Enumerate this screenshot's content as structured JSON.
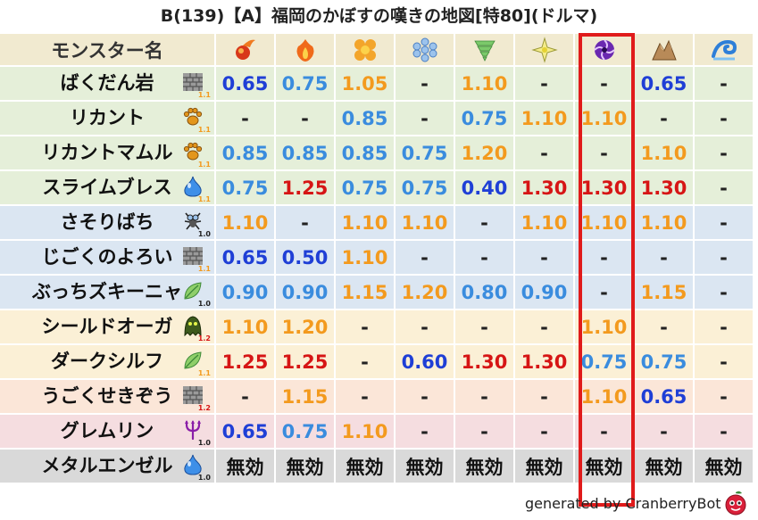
{
  "title": "B(139)【A】福岡のかぼすの嘆きの地図[特80](ドルマ)",
  "header": {
    "name_label": "モンスター名",
    "elements": [
      {
        "icon": "mera-fire-icon",
        "color": "#e8401c"
      },
      {
        "icon": "gira-flame-icon",
        "color": "#f06a1a"
      },
      {
        "icon": "io-explosion-icon",
        "color": "#f3a52a"
      },
      {
        "icon": "hyado-ice-icon",
        "color": "#7aa8e0"
      },
      {
        "icon": "bagi-wind-icon",
        "color": "#7bc96a"
      },
      {
        "icon": "dein-light-icon",
        "color": "#d9c84a"
      },
      {
        "icon": "doruma-dark-icon",
        "color": "#7a2fb8"
      },
      {
        "icon": "jibari-earth-icon",
        "color": "#a87a48"
      },
      {
        "icon": "water-wave-icon",
        "color": "#2e7fd8"
      }
    ]
  },
  "rows": [
    {
      "name": "ばくだん岩",
      "bg": "green",
      "type_icon": "stone-block-icon",
      "type_num": "1.1",
      "type_num_color": "#f39a1e",
      "cells": [
        {
          "v": "0.65",
          "c": "blue"
        },
        {
          "v": "0.75",
          "c": "sky"
        },
        {
          "v": "1.05",
          "c": "orange"
        },
        {
          "v": "-",
          "c": "dash"
        },
        {
          "v": "1.10",
          "c": "orange"
        },
        {
          "v": "-",
          "c": "dash"
        },
        {
          "v": "-",
          "c": "dash"
        },
        {
          "v": "0.65",
          "c": "blue"
        },
        {
          "v": "-",
          "c": "dash"
        }
      ]
    },
    {
      "name": "リカント",
      "bg": "green",
      "type_icon": "paw-icon",
      "type_num": "1.1",
      "type_num_color": "#f39a1e",
      "cells": [
        {
          "v": "-",
          "c": "dash"
        },
        {
          "v": "-",
          "c": "dash"
        },
        {
          "v": "0.85",
          "c": "sky"
        },
        {
          "v": "-",
          "c": "dash"
        },
        {
          "v": "0.75",
          "c": "sky"
        },
        {
          "v": "1.10",
          "c": "orange"
        },
        {
          "v": "1.10",
          "c": "orange"
        },
        {
          "v": "-",
          "c": "dash"
        },
        {
          "v": "-",
          "c": "dash"
        }
      ]
    },
    {
      "name": "リカントマムル",
      "bg": "green",
      "type_icon": "paw-icon",
      "type_num": "1.1",
      "type_num_color": "#f39a1e",
      "cells": [
        {
          "v": "0.85",
          "c": "sky"
        },
        {
          "v": "0.85",
          "c": "sky"
        },
        {
          "v": "0.85",
          "c": "sky"
        },
        {
          "v": "0.75",
          "c": "sky"
        },
        {
          "v": "1.20",
          "c": "orange"
        },
        {
          "v": "-",
          "c": "dash"
        },
        {
          "v": "-",
          "c": "dash"
        },
        {
          "v": "1.10",
          "c": "orange"
        },
        {
          "v": "-",
          "c": "dash"
        }
      ]
    },
    {
      "name": "スライムブレス",
      "bg": "green",
      "type_icon": "slime-icon",
      "type_num": "1.1",
      "type_num_color": "#f39a1e",
      "cells": [
        {
          "v": "0.75",
          "c": "sky"
        },
        {
          "v": "1.25",
          "c": "red"
        },
        {
          "v": "0.75",
          "c": "sky"
        },
        {
          "v": "0.75",
          "c": "sky"
        },
        {
          "v": "0.40",
          "c": "blue"
        },
        {
          "v": "1.30",
          "c": "red"
        },
        {
          "v": "1.30",
          "c": "red"
        },
        {
          "v": "1.30",
          "c": "red"
        },
        {
          "v": "-",
          "c": "dash"
        }
      ]
    },
    {
      "name": "さそりばち",
      "bg": "blue",
      "type_icon": "insect-icon",
      "type_num": "1.0",
      "type_num_color": "#222222",
      "cells": [
        {
          "v": "1.10",
          "c": "orange"
        },
        {
          "v": "-",
          "c": "dash"
        },
        {
          "v": "1.10",
          "c": "orange"
        },
        {
          "v": "1.10",
          "c": "orange"
        },
        {
          "v": "-",
          "c": "dash"
        },
        {
          "v": "1.10",
          "c": "orange"
        },
        {
          "v": "1.10",
          "c": "orange"
        },
        {
          "v": "1.10",
          "c": "orange"
        },
        {
          "v": "-",
          "c": "dash"
        }
      ]
    },
    {
      "name": "じごくのよろい",
      "bg": "blue",
      "type_icon": "stone-block-icon",
      "type_num": "1.1",
      "type_num_color": "#f39a1e",
      "cells": [
        {
          "v": "0.65",
          "c": "blue"
        },
        {
          "v": "0.50",
          "c": "blue"
        },
        {
          "v": "1.10",
          "c": "orange"
        },
        {
          "v": "-",
          "c": "dash"
        },
        {
          "v": "-",
          "c": "dash"
        },
        {
          "v": "-",
          "c": "dash"
        },
        {
          "v": "-",
          "c": "dash"
        },
        {
          "v": "-",
          "c": "dash"
        },
        {
          "v": "-",
          "c": "dash"
        }
      ]
    },
    {
      "name": "ぶっちズキーニャ",
      "bg": "blue",
      "type_icon": "leaf-icon",
      "type_num": "1.0",
      "type_num_color": "#222222",
      "cells": [
        {
          "v": "0.90",
          "c": "sky"
        },
        {
          "v": "0.90",
          "c": "sky"
        },
        {
          "v": "1.15",
          "c": "orange"
        },
        {
          "v": "1.20",
          "c": "orange"
        },
        {
          "v": "0.80",
          "c": "sky"
        },
        {
          "v": "0.90",
          "c": "sky"
        },
        {
          "v": "-",
          "c": "dash"
        },
        {
          "v": "1.15",
          "c": "orange"
        },
        {
          "v": "-",
          "c": "dash"
        }
      ]
    },
    {
      "name": "シールドオーガ",
      "bg": "yellow",
      "type_icon": "zombie-ghost-icon",
      "type_num": "1.2",
      "type_num_color": "#d61515",
      "cells": [
        {
          "v": "1.10",
          "c": "orange"
        },
        {
          "v": "1.20",
          "c": "orange"
        },
        {
          "v": "-",
          "c": "dash"
        },
        {
          "v": "-",
          "c": "dash"
        },
        {
          "v": "-",
          "c": "dash"
        },
        {
          "v": "-",
          "c": "dash"
        },
        {
          "v": "1.10",
          "c": "orange"
        },
        {
          "v": "-",
          "c": "dash"
        },
        {
          "v": "-",
          "c": "dash"
        }
      ]
    },
    {
      "name": "ダークシルフ",
      "bg": "yellow",
      "type_icon": "leaf-icon",
      "type_num": "1.1",
      "type_num_color": "#f39a1e",
      "cells": [
        {
          "v": "1.25",
          "c": "red"
        },
        {
          "v": "1.25",
          "c": "red"
        },
        {
          "v": "-",
          "c": "dash"
        },
        {
          "v": "0.60",
          "c": "blue"
        },
        {
          "v": "1.30",
          "c": "red"
        },
        {
          "v": "1.30",
          "c": "red"
        },
        {
          "v": "0.75",
          "c": "sky"
        },
        {
          "v": "0.75",
          "c": "sky"
        },
        {
          "v": "-",
          "c": "dash"
        }
      ]
    },
    {
      "name": "うごくせきぞう",
      "bg": "peach",
      "type_icon": "stone-block-icon",
      "type_num": "1.2",
      "type_num_color": "#d61515",
      "cells": [
        {
          "v": "-",
          "c": "dash"
        },
        {
          "v": "1.15",
          "c": "orange"
        },
        {
          "v": "-",
          "c": "dash"
        },
        {
          "v": "-",
          "c": "dash"
        },
        {
          "v": "-",
          "c": "dash"
        },
        {
          "v": "-",
          "c": "dash"
        },
        {
          "v": "1.10",
          "c": "orange"
        },
        {
          "v": "0.65",
          "c": "blue"
        },
        {
          "v": "-",
          "c": "dash"
        }
      ]
    },
    {
      "name": "グレムリン",
      "bg": "pink",
      "type_icon": "demon-trident-icon",
      "type_num": "1.0",
      "type_num_color": "#222222",
      "cells": [
        {
          "v": "0.65",
          "c": "blue"
        },
        {
          "v": "0.75",
          "c": "sky"
        },
        {
          "v": "1.10",
          "c": "orange"
        },
        {
          "v": "-",
          "c": "dash"
        },
        {
          "v": "-",
          "c": "dash"
        },
        {
          "v": "-",
          "c": "dash"
        },
        {
          "v": "-",
          "c": "dash"
        },
        {
          "v": "-",
          "c": "dash"
        },
        {
          "v": "-",
          "c": "dash"
        }
      ]
    },
    {
      "name": "メタルエンゼル",
      "bg": "gray",
      "type_icon": "slime-icon",
      "type_num": "1.0",
      "type_num_color": "#222222",
      "cells": [
        {
          "v": "無効",
          "c": "mu"
        },
        {
          "v": "無効",
          "c": "mu"
        },
        {
          "v": "無効",
          "c": "mu"
        },
        {
          "v": "無効",
          "c": "mu"
        },
        {
          "v": "無効",
          "c": "mu"
        },
        {
          "v": "無効",
          "c": "mu"
        },
        {
          "v": "無効",
          "c": "mu"
        },
        {
          "v": "無効",
          "c": "mu"
        },
        {
          "v": "無効",
          "c": "mu"
        }
      ]
    }
  ],
  "highlight_column": 6,
  "footer": {
    "text": "generated by CranberryBot",
    "icon": "cranberry-bot-icon"
  }
}
